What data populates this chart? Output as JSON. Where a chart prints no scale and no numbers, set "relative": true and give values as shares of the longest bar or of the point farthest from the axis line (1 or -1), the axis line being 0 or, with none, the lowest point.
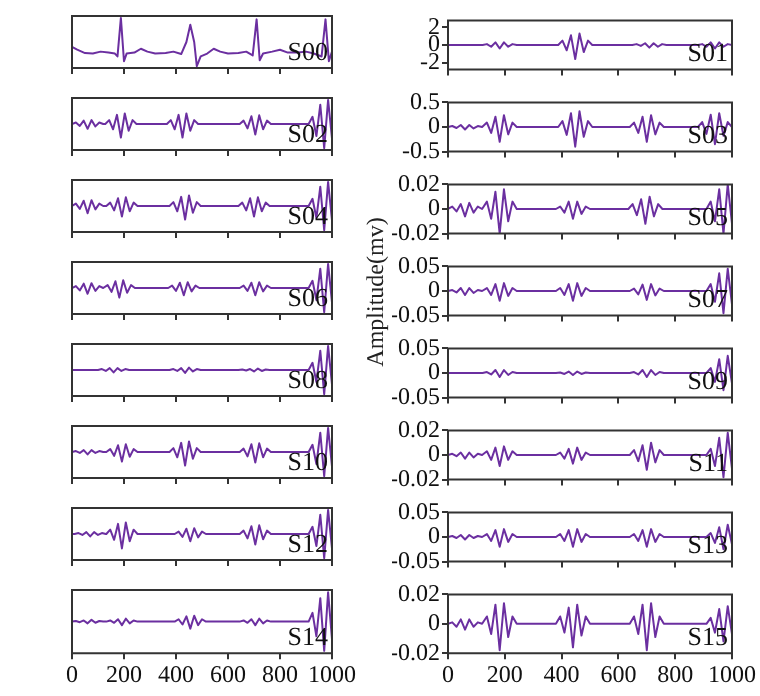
{
  "chart_data": [
    {
      "type": "line",
      "title": "S00",
      "relative": true,
      "color": "#6b2fa0",
      "xlim": [
        0,
        1000
      ],
      "xticks": [
        0,
        200,
        400,
        600,
        800,
        1000
      ],
      "tick_labels": false,
      "x": [
        0,
        20,
        50,
        80,
        110,
        140,
        165,
        175,
        188,
        200,
        210,
        240,
        265,
        290,
        320,
        360,
        390,
        420,
        440,
        455,
        470,
        480,
        495,
        520,
        545,
        570,
        600,
        640,
        670,
        695,
        710,
        722,
        735,
        770,
        800,
        830,
        870,
        900,
        930,
        960,
        975,
        988,
        1000
      ],
      "values": [
        0.4,
        0.34,
        0.27,
        0.26,
        0.3,
        0.28,
        0.26,
        0.2,
        1,
        0.1,
        0.26,
        0.28,
        0.36,
        0.3,
        0.26,
        0.27,
        0.3,
        0.25,
        0.5,
        0.86,
        0.5,
        0,
        0.2,
        0.26,
        0.36,
        0.3,
        0.26,
        0.27,
        0.3,
        0.22,
        0.97,
        0.12,
        0.26,
        0.3,
        0.34,
        0.28,
        0.28,
        0.3,
        0.26,
        0.2,
        0.97,
        0.1,
        0.3
      ]
    },
    {
      "type": "line",
      "title": "S01",
      "color": "#6b2fa0",
      "xlim": [
        0,
        1000
      ],
      "xticks": [
        0,
        200,
        400,
        600,
        800,
        1000
      ],
      "ylim": [
        -2.8,
        2.8
      ],
      "yticks": [
        -2,
        0,
        2
      ],
      "tick_labels": "y",
      "x": [
        0,
        122,
        137,
        152,
        167,
        182,
        197,
        212,
        227,
        242,
        388,
        403,
        418,
        433,
        448,
        463,
        478,
        493,
        508,
        649,
        664,
        679,
        694,
        709,
        724,
        739,
        754,
        769,
        880,
        895,
        910,
        925,
        940,
        955,
        970,
        985,
        1000
      ],
      "values": [
        0,
        0,
        0.1,
        -0.2,
        0.3,
        -0.4,
        0.3,
        -0.2,
        0.1,
        0,
        0,
        0.5,
        -0.6,
        1.1,
        -1.6,
        1.3,
        -0.8,
        0.5,
        0,
        0,
        0.1,
        -0.1,
        0.2,
        -0.3,
        0.2,
        -0.2,
        0.1,
        0,
        0,
        0.1,
        -0.2,
        0.3,
        -0.4,
        0.3,
        -0.2,
        0.1,
        0
      ]
    },
    {
      "type": "line",
      "title": "S02",
      "relative": true,
      "color": "#6b2fa0",
      "xlim": [
        0,
        1000
      ],
      "xticks": [
        0,
        200,
        400,
        600,
        800,
        1000
      ],
      "tick_labels": false,
      "x": [
        0,
        15,
        30,
        45,
        60,
        75,
        90,
        105,
        120,
        128,
        143,
        158,
        173,
        188,
        203,
        218,
        233,
        248,
        365,
        380,
        395,
        410,
        425,
        440,
        455,
        470,
        485,
        645,
        660,
        675,
        690,
        705,
        720,
        735,
        750,
        765,
        910,
        925,
        940,
        955,
        970,
        985,
        1000
      ],
      "values": [
        0.5,
        0.53,
        0.46,
        0.57,
        0.4,
        0.58,
        0.45,
        0.53,
        0.5,
        0.5,
        0.58,
        0.39,
        0.69,
        0.22,
        0.72,
        0.36,
        0.58,
        0.5,
        0.5,
        0.58,
        0.39,
        0.69,
        0.22,
        0.72,
        0.36,
        0.58,
        0.5,
        0.5,
        0.57,
        0.41,
        0.66,
        0.28,
        0.68,
        0.39,
        0.57,
        0.5,
        0.5,
        0.65,
        0.25,
        0.9,
        0,
        1,
        0.2
      ]
    },
    {
      "type": "line",
      "title": "S03",
      "color": "#6b2fa0",
      "xlim": [
        0,
        1000
      ],
      "xticks": [
        0,
        200,
        400,
        600,
        800,
        1000
      ],
      "ylim": [
        -0.5,
        0.5
      ],
      "yticks": [
        -0.5,
        0,
        0.5
      ],
      "tick_labels": "y",
      "x": [
        0,
        15,
        30,
        45,
        60,
        75,
        90,
        105,
        120,
        122,
        137,
        152,
        167,
        182,
        197,
        212,
        227,
        242,
        388,
        403,
        418,
        433,
        448,
        463,
        478,
        493,
        508,
        640,
        655,
        670,
        685,
        700,
        715,
        730,
        745,
        760,
        880,
        895,
        910,
        925,
        940,
        955,
        970,
        985,
        1000
      ],
      "values": [
        0,
        0.02,
        -0.02,
        0.04,
        -0.05,
        0.04,
        -0.03,
        0.02,
        0,
        0,
        0.09,
        -0.12,
        0.21,
        -0.3,
        0.24,
        -0.15,
        0.09,
        0,
        0,
        0.12,
        -0.16,
        0.28,
        -0.4,
        0.32,
        -0.2,
        0.12,
        0,
        0,
        0.09,
        -0.12,
        0.21,
        -0.3,
        0.24,
        -0.15,
        0.09,
        0,
        0,
        0.1,
        -0.14,
        0.25,
        -0.35,
        0.28,
        -0.18,
        0.1,
        0
      ]
    },
    {
      "type": "line",
      "title": "S04",
      "relative": true,
      "color": "#6b2fa0",
      "xlim": [
        0,
        1000
      ],
      "xticks": [
        0,
        200,
        400,
        600,
        800,
        1000
      ],
      "tick_labels": false,
      "x": [
        0,
        15,
        30,
        45,
        60,
        75,
        90,
        105,
        120,
        132,
        147,
        162,
        177,
        192,
        207,
        222,
        237,
        252,
        375,
        390,
        405,
        420,
        435,
        450,
        465,
        480,
        495,
        640,
        655,
        670,
        685,
        700,
        715,
        730,
        745,
        760,
        910,
        925,
        940,
        955,
        970,
        985,
        1000
      ],
      "values": [
        0.5,
        0.55,
        0.44,
        0.61,
        0.35,
        0.62,
        0.43,
        0.55,
        0.5,
        0.5,
        0.57,
        0.41,
        0.66,
        0.28,
        0.68,
        0.39,
        0.57,
        0.5,
        0.5,
        0.58,
        0.39,
        0.69,
        0.22,
        0.72,
        0.36,
        0.58,
        0.5,
        0.5,
        0.57,
        0.41,
        0.66,
        0.28,
        0.68,
        0.39,
        0.57,
        0.5,
        0.5,
        0.65,
        0.25,
        0.9,
        0,
        1,
        0.2
      ]
    },
    {
      "type": "line",
      "title": "S05",
      "color": "#6b2fa0",
      "xlim": [
        0,
        1000
      ],
      "xticks": [
        0,
        200,
        400,
        600,
        800,
        1000
      ],
      "ylim": [
        -0.02,
        0.02
      ],
      "yticks": [
        -0.02,
        0,
        0.02
      ],
      "tick_labels": "y",
      "x": [
        0,
        15,
        30,
        45,
        60,
        75,
        90,
        105,
        120,
        122,
        137,
        152,
        167,
        182,
        197,
        212,
        227,
        242,
        380,
        395,
        410,
        425,
        440,
        455,
        470,
        485,
        500,
        635,
        650,
        665,
        680,
        695,
        710,
        725,
        740,
        755,
        910,
        925,
        940,
        955,
        970,
        985,
        1000
      ],
      "values": [
        0,
        0.002,
        -0.002,
        0.004,
        -0.006,
        0.005,
        -0.003,
        0.002,
        0,
        0,
        0.006,
        -0.008,
        0.014,
        -0.02,
        0.016,
        -0.01,
        0.006,
        0,
        0,
        0.002,
        -0.003,
        0.006,
        -0.008,
        0.006,
        -0.004,
        0.002,
        0,
        0,
        0.004,
        -0.005,
        0.008,
        -0.012,
        0.01,
        -0.006,
        0.004,
        0,
        0,
        0.006,
        -0.01,
        0.016,
        -0.02,
        0.02,
        -0.012
      ]
    },
    {
      "type": "line",
      "title": "S06",
      "relative": true,
      "color": "#6b2fa0",
      "xlim": [
        0,
        1000
      ],
      "xticks": [
        0,
        200,
        400,
        600,
        800,
        1000
      ],
      "tick_labels": false,
      "x": [
        0,
        15,
        30,
        45,
        60,
        75,
        90,
        105,
        120,
        122,
        137,
        152,
        167,
        182,
        197,
        212,
        227,
        242,
        370,
        385,
        400,
        415,
        430,
        445,
        460,
        475,
        490,
        645,
        660,
        675,
        690,
        705,
        720,
        735,
        750,
        765,
        910,
        925,
        940,
        955,
        970,
        985,
        1000
      ],
      "values": [
        0.5,
        0.54,
        0.45,
        0.59,
        0.38,
        0.6,
        0.44,
        0.54,
        0.5,
        0.5,
        0.56,
        0.42,
        0.64,
        0.3,
        0.66,
        0.4,
        0.56,
        0.5,
        0.5,
        0.55,
        0.44,
        0.61,
        0.35,
        0.62,
        0.43,
        0.55,
        0.5,
        0.5,
        0.55,
        0.44,
        0.61,
        0.35,
        0.62,
        0.43,
        0.55,
        0.5,
        0.5,
        0.65,
        0.25,
        0.9,
        0,
        1,
        0.2
      ]
    },
    {
      "type": "line",
      "title": "S07",
      "ylabel": "Amplitude(mv)",
      "color": "#6b2fa0",
      "xlim": [
        0,
        1000
      ],
      "xticks": [
        0,
        200,
        400,
        600,
        800,
        1000
      ],
      "ylim": [
        -0.05,
        0.05
      ],
      "yticks": [
        -0.05,
        0,
        0.05
      ],
      "tick_labels": "y",
      "x": [
        0,
        15,
        30,
        45,
        60,
        75,
        90,
        105,
        120,
        122,
        137,
        152,
        167,
        182,
        197,
        212,
        227,
        242,
        380,
        395,
        410,
        425,
        440,
        455,
        470,
        485,
        500,
        640,
        655,
        670,
        685,
        700,
        715,
        730,
        745,
        760,
        910,
        925,
        940,
        955,
        970,
        985,
        1000
      ],
      "values": [
        0,
        0.002,
        -0.003,
        0.006,
        -0.008,
        0.006,
        -0.004,
        0.002,
        0,
        0,
        0.006,
        -0.008,
        0.014,
        -0.02,
        0.016,
        -0.01,
        0.006,
        0,
        0,
        0.006,
        -0.008,
        0.014,
        -0.02,
        0.016,
        -0.01,
        0.006,
        0,
        0,
        0.005,
        -0.007,
        0.013,
        -0.018,
        0.014,
        -0.009,
        0.005,
        0,
        0,
        0.014,
        -0.022,
        0.036,
        -0.045,
        0.045,
        -0.027
      ]
    },
    {
      "type": "line",
      "title": "S08",
      "relative": true,
      "color": "#6b2fa0",
      "xlim": [
        0,
        1000
      ],
      "xticks": [
        0,
        200,
        400,
        600,
        800,
        1000
      ],
      "tick_labels": false,
      "x": [
        0,
        100,
        115,
        130,
        145,
        160,
        175,
        190,
        205,
        220,
        375,
        390,
        405,
        420,
        435,
        450,
        465,
        480,
        495,
        640,
        655,
        670,
        685,
        700,
        715,
        730,
        745,
        760,
        910,
        925,
        940,
        955,
        970,
        985,
        1000
      ],
      "values": [
        0.5,
        0.5,
        0.52,
        0.48,
        0.54,
        0.45,
        0.54,
        0.48,
        0.52,
        0.5,
        0.5,
        0.52,
        0.48,
        0.54,
        0.44,
        0.55,
        0.47,
        0.52,
        0.5,
        0.5,
        0.51,
        0.49,
        0.52,
        0.47,
        0.53,
        0.48,
        0.51,
        0.5,
        0.5,
        0.65,
        0.25,
        0.9,
        0,
        1,
        0.2
      ]
    },
    {
      "type": "line",
      "title": "S09",
      "color": "#6b2fa0",
      "xlim": [
        0,
        1000
      ],
      "xticks": [
        0,
        200,
        400,
        600,
        800,
        1000
      ],
      "ylim": [
        -0.05,
        0.05
      ],
      "yticks": [
        -0.05,
        0,
        0.05
      ],
      "tick_labels": "y",
      "x": [
        0,
        122,
        137,
        152,
        167,
        182,
        197,
        212,
        227,
        242,
        380,
        395,
        410,
        425,
        440,
        455,
        470,
        485,
        500,
        640,
        655,
        670,
        685,
        700,
        715,
        730,
        745,
        760,
        910,
        925,
        940,
        955,
        970,
        985,
        1000
      ],
      "values": [
        0,
        0,
        0.002,
        -0.003,
        0.006,
        -0.008,
        0.006,
        -0.004,
        0.002,
        0,
        0,
        0.001,
        -0.002,
        0.003,
        -0.004,
        0.003,
        -0.002,
        0.001,
        0,
        0,
        0.002,
        -0.003,
        0.006,
        -0.008,
        0.006,
        -0.004,
        0.002,
        0,
        0,
        0.01,
        -0.018,
        0.028,
        -0.035,
        0.035,
        -0.021
      ]
    },
    {
      "type": "line",
      "title": "S10",
      "relative": true,
      "color": "#6b2fa0",
      "xlim": [
        0,
        1000
      ],
      "xticks": [
        0,
        200,
        400,
        600,
        800,
        1000
      ],
      "tick_labels": false,
      "x": [
        0,
        15,
        30,
        45,
        60,
        75,
        90,
        105,
        120,
        132,
        147,
        162,
        177,
        192,
        207,
        222,
        237,
        252,
        375,
        390,
        405,
        420,
        435,
        450,
        465,
        480,
        495,
        645,
        660,
        675,
        690,
        705,
        720,
        735,
        750,
        765,
        910,
        925,
        940,
        955,
        970,
        985,
        1000
      ],
      "values": [
        0.5,
        0.52,
        0.48,
        0.54,
        0.45,
        0.54,
        0.48,
        0.52,
        0.5,
        0.5,
        0.56,
        0.42,
        0.64,
        0.3,
        0.66,
        0.4,
        0.56,
        0.5,
        0.5,
        0.58,
        0.39,
        0.69,
        0.22,
        0.72,
        0.36,
        0.58,
        0.5,
        0.5,
        0.57,
        0.41,
        0.66,
        0.28,
        0.68,
        0.39,
        0.57,
        0.5,
        0.5,
        0.65,
        0.25,
        0.9,
        0,
        1,
        0.2
      ]
    },
    {
      "type": "line",
      "title": "S11",
      "color": "#6b2fa0",
      "xlim": [
        0,
        1000
      ],
      "xticks": [
        0,
        200,
        400,
        600,
        800,
        1000
      ],
      "ylim": [
        -0.02,
        0.02
      ],
      "yticks": [
        -0.02,
        0,
        0.02
      ],
      "tick_labels": "y",
      "x": [
        0,
        15,
        30,
        45,
        60,
        75,
        90,
        105,
        120,
        122,
        137,
        152,
        167,
        182,
        197,
        212,
        227,
        242,
        380,
        395,
        410,
        425,
        440,
        455,
        470,
        485,
        500,
        640,
        655,
        670,
        685,
        700,
        715,
        730,
        745,
        760,
        910,
        925,
        940,
        955,
        970,
        985,
        1000
      ],
      "values": [
        0,
        0.001,
        -0.001,
        0.002,
        -0.003,
        0.002,
        -0.002,
        0.001,
        0,
        0,
        0.003,
        -0.004,
        0.006,
        -0.009,
        0.007,
        -0.004,
        0.003,
        0,
        0,
        0.002,
        -0.003,
        0.005,
        -0.007,
        0.006,
        -0.004,
        0.002,
        0,
        0,
        0.004,
        -0.005,
        0.008,
        -0.012,
        0.01,
        -0.006,
        0.004,
        0,
        0,
        0.005,
        -0.009,
        0.014,
        -0.018,
        0.018,
        -0.011
      ]
    },
    {
      "type": "line",
      "title": "S12",
      "relative": true,
      "color": "#6b2fa0",
      "xlim": [
        0,
        1000
      ],
      "xticks": [
        0,
        200,
        400,
        600,
        800,
        1000
      ],
      "tick_labels": false,
      "x": [
        0,
        10,
        25,
        40,
        55,
        70,
        85,
        100,
        115,
        130,
        132,
        147,
        162,
        177,
        192,
        207,
        222,
        237,
        252,
        395,
        410,
        425,
        440,
        455,
        470,
        485,
        500,
        515,
        645,
        660,
        675,
        690,
        705,
        720,
        735,
        750,
        765,
        910,
        925,
        940,
        955,
        970,
        985,
        1000
      ],
      "values": [
        0.5,
        0.5,
        0.52,
        0.48,
        0.54,
        0.45,
        0.54,
        0.48,
        0.52,
        0.5,
        0.5,
        0.59,
        0.38,
        0.71,
        0.2,
        0.74,
        0.35,
        0.59,
        0.5,
        0.5,
        0.55,
        0.44,
        0.61,
        0.35,
        0.62,
        0.43,
        0.55,
        0.5,
        0.5,
        0.57,
        0.41,
        0.66,
        0.28,
        0.68,
        0.39,
        0.57,
        0.5,
        0.5,
        0.65,
        0.25,
        0.9,
        0,
        1,
        0.2
      ]
    },
    {
      "type": "line",
      "title": "S13",
      "color": "#6b2fa0",
      "xlim": [
        0,
        1000
      ],
      "xticks": [
        0,
        200,
        400,
        600,
        800,
        1000
      ],
      "ylim": [
        -0.05,
        0.05
      ],
      "yticks": [
        -0.05,
        0,
        0.05
      ],
      "tick_labels": "y",
      "x": [
        0,
        15,
        30,
        45,
        60,
        75,
        90,
        105,
        120,
        122,
        137,
        152,
        167,
        182,
        197,
        212,
        227,
        242,
        380,
        395,
        410,
        425,
        440,
        455,
        470,
        485,
        500,
        640,
        655,
        670,
        685,
        700,
        715,
        730,
        745,
        760,
        910,
        925,
        940,
        955,
        970,
        985,
        1000
      ],
      "values": [
        0,
        0.002,
        -0.002,
        0.004,
        -0.005,
        0.004,
        -0.002,
        0.002,
        0,
        0,
        0.006,
        -0.008,
        0.014,
        -0.02,
        0.016,
        -0.01,
        0.006,
        0,
        0,
        0.006,
        -0.008,
        0.014,
        -0.02,
        0.016,
        -0.01,
        0.006,
        0,
        0,
        0.006,
        -0.008,
        0.014,
        -0.02,
        0.016,
        -0.01,
        0.006,
        0,
        0,
        0.008,
        -0.012,
        0.02,
        -0.025,
        0.025,
        -0.015
      ]
    },
    {
      "type": "line",
      "title": "S14",
      "relative": true,
      "color": "#6b2fa0",
      "xlim": [
        0,
        1000
      ],
      "xticks": [
        0,
        200,
        400,
        600,
        800,
        1000
      ],
      "tick_labels": "x",
      "x": [
        0,
        15,
        30,
        45,
        60,
        75,
        90,
        105,
        120,
        132,
        147,
        162,
        177,
        192,
        207,
        222,
        237,
        252,
        395,
        410,
        425,
        440,
        455,
        470,
        485,
        500,
        515,
        645,
        660,
        675,
        690,
        705,
        720,
        735,
        750,
        765,
        910,
        925,
        940,
        955,
        970,
        985,
        1000
      ],
      "values": [
        0.5,
        0.51,
        0.49,
        0.52,
        0.47,
        0.53,
        0.48,
        0.51,
        0.5,
        0.5,
        0.52,
        0.48,
        0.54,
        0.44,
        0.55,
        0.47,
        0.52,
        0.5,
        0.5,
        0.54,
        0.45,
        0.59,
        0.38,
        0.6,
        0.44,
        0.54,
        0.5,
        0.5,
        0.52,
        0.48,
        0.54,
        0.44,
        0.55,
        0.47,
        0.52,
        0.5,
        0.5,
        0.65,
        0.25,
        0.9,
        0,
        1,
        0.2
      ]
    },
    {
      "type": "line",
      "title": "S15",
      "color": "#6b2fa0",
      "xlim": [
        0,
        1000
      ],
      "xticks": [
        0,
        200,
        400,
        600,
        800,
        1000
      ],
      "ylim": [
        -0.02,
        0.02
      ],
      "yticks": [
        -0.02,
        0,
        0.02
      ],
      "x": [
        0,
        15,
        30,
        45,
        60,
        75,
        90,
        105,
        120,
        122,
        137,
        152,
        167,
        182,
        197,
        212,
        227,
        242,
        380,
        395,
        410,
        425,
        440,
        455,
        470,
        485,
        500,
        640,
        655,
        670,
        685,
        700,
        715,
        730,
        745,
        760,
        910,
        925,
        940,
        955,
        970,
        985,
        1000
      ],
      "values": [
        0,
        0.001,
        -0.002,
        0.003,
        -0.004,
        0.003,
        -0.002,
        0.001,
        0,
        0,
        0.005,
        -0.007,
        0.013,
        -0.018,
        0.014,
        -0.009,
        0.005,
        0,
        0,
        0.005,
        -0.006,
        0.011,
        -0.016,
        0.013,
        -0.008,
        0.005,
        0,
        0,
        0.005,
        -0.007,
        0.013,
        -0.018,
        0.014,
        -0.009,
        0.005,
        0,
        0,
        0.004,
        -0.006,
        0.01,
        -0.012,
        0.012,
        -0.007
      ]
    }
  ]
}
